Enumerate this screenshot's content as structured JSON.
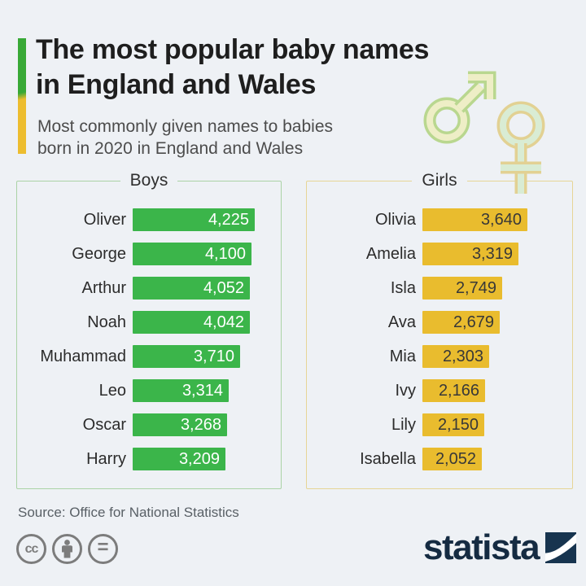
{
  "header": {
    "title_line1": "The most popular baby names",
    "title_line2": "in England and Wales",
    "subtitle_line1": "Most commonly given names to babies",
    "subtitle_line2": "born in 2020 in England and Wales",
    "accent_top_color": "#38a936",
    "accent_bottom_color": "#edbd2f"
  },
  "chart_data": {
    "type": "bar",
    "orientation": "horizontal",
    "title": "The most popular baby names in England and Wales",
    "subtitle": "Most commonly given names to babies born in 2020 in England and Wales",
    "xlim": [
      0,
      4225
    ],
    "grid": false,
    "panels": [
      {
        "label": "Boys",
        "bar_color": "#3bb54a",
        "border_color": "#abd3a6",
        "value_text_color": "#ffffff",
        "names": [
          "Oliver",
          "George",
          "Arthur",
          "Noah",
          "Muhammad",
          "Leo",
          "Oscar",
          "Harry"
        ],
        "values": [
          4225,
          4100,
          4052,
          4042,
          3710,
          3314,
          3268,
          3209
        ],
        "value_labels": [
          "4,225",
          "4,100",
          "4,052",
          "4,042",
          "3,710",
          "3,314",
          "3,268",
          "3,209"
        ]
      },
      {
        "label": "Girls",
        "bar_color": "#e9bc2e",
        "border_color": "#e6d596",
        "value_text_color": "#383838",
        "names": [
          "Olivia",
          "Amelia",
          "Isla",
          "Ava",
          "Mia",
          "Ivy",
          "Lily",
          "Isabella"
        ],
        "values": [
          3640,
          3319,
          2749,
          2679,
          2303,
          2166,
          2150,
          2052
        ],
        "value_labels": [
          "3,640",
          "3,319",
          "2,749",
          "2,679",
          "2,303",
          "2,166",
          "2,150",
          "2,052"
        ]
      }
    ]
  },
  "decor": {
    "male_icon_stroke": "#b9d78f",
    "male_icon_fill": "#eeeec6",
    "female_icon_stroke": "#e2d193",
    "female_icon_fill": "#d9ecd4"
  },
  "footer": {
    "source": "Source: Office for National Statistics",
    "brand": "statista",
    "brand_color": "#152b42",
    "license": {
      "cc_glyph": "cc",
      "equals_glyph": "="
    }
  }
}
